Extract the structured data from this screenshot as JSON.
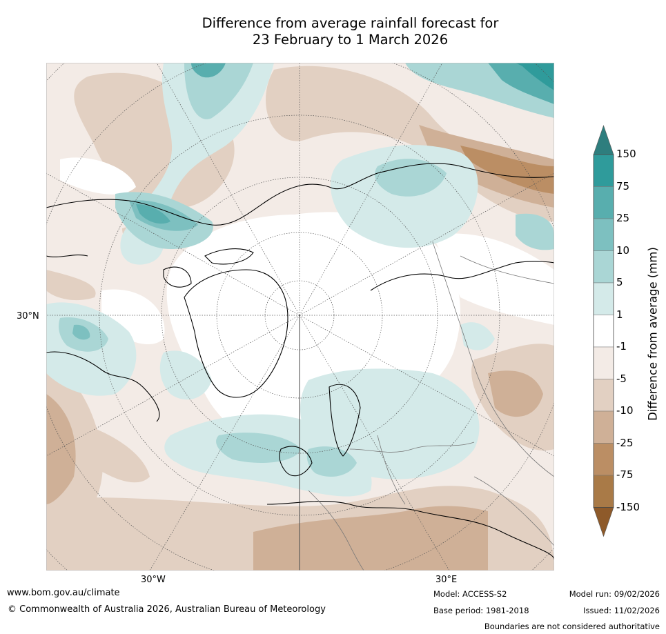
{
  "title": {
    "line1": "Difference from average rainfall forecast for",
    "line2": "23 February to 1 March 2026"
  },
  "map": {
    "projection": "north-polar-stereographic",
    "lat_label": "30°N",
    "lon_labels": [
      "30°W",
      "30°E"
    ]
  },
  "colorbar": {
    "title": "Difference from average (mm)",
    "labels": [
      "150",
      "75",
      "25",
      "10",
      "5",
      "1",
      "-1",
      "-5",
      "-10",
      "-25",
      "-75",
      "-150"
    ],
    "colors": [
      "#2e8f8f",
      "#2f9b9b",
      "#58aeae",
      "#7dc0c0",
      "#aad6d5",
      "#d4eae9",
      "#ffffff",
      "#f3ebe6",
      "#e2d0c2",
      "#cfb097",
      "#bb8e64",
      "#a97a47",
      "#8e5a2a"
    ],
    "extend_top_color": "#2e7e7e",
    "extend_bottom_color": "#8e5a2a"
  },
  "footer": {
    "website": "www.bom.gov.au/climate",
    "copyright": "© Commonwealth of Australia 2026, Australian Bureau of Meteorology",
    "model": "Model: ACCESS-S2",
    "base_period": "Base period: 1981-2018",
    "model_run": "Model run: 09/02/2026",
    "issued": "Issued: 11/02/2026",
    "disclaimer": "Boundaries are not considered authoritative"
  }
}
